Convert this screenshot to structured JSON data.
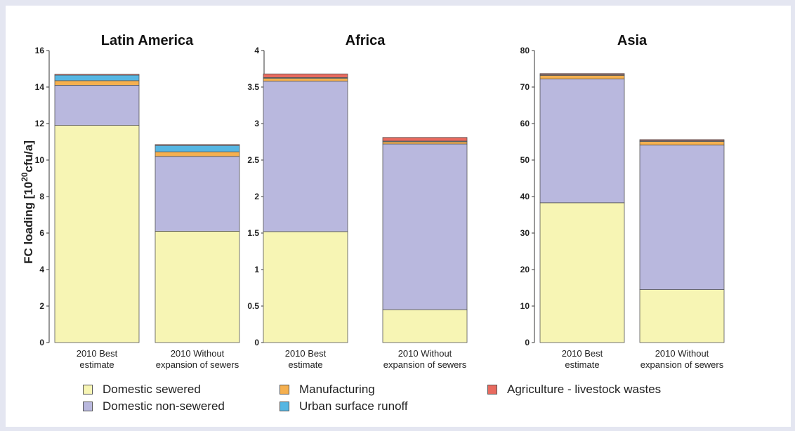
{
  "colors": {
    "domestic_sewered": "#f7f5b4",
    "domestic_non_sewered": "#b9b8de",
    "manufacturing": "#f5b04f",
    "urban_runoff": "#56b6e2",
    "agriculture": "#e96a5f"
  },
  "ylabel": "FC loading [10",
  "ylabel_sup": "20",
  "ylabel_tail": "cfu/a]",
  "legend": [
    {
      "name": "Domestic sewered",
      "color": "#f7f5b4"
    },
    {
      "name": "Domestic non-sewered",
      "color": "#b9b8de"
    },
    {
      "name": "Manufacturing",
      "color": "#f5b04f"
    },
    {
      "name": "Urban surface runoff",
      "color": "#56b6e2"
    },
    {
      "name": "Agriculture - livestock wastes",
      "color": "#e96a5f"
    }
  ],
  "chart_data": [
    {
      "type": "bar",
      "stacked": true,
      "title": "Latin America",
      "categories": [
        [
          "2010 Best",
          "estimate"
        ],
        [
          "2010 Without",
          "expansion of sewers"
        ]
      ],
      "ylim": [
        0,
        16
      ],
      "yticks": [
        0,
        2,
        4,
        6,
        8,
        10,
        12,
        14,
        16
      ],
      "series": [
        {
          "name": "Domestic sewered",
          "values": [
            11.9,
            6.1
          ]
        },
        {
          "name": "Domestic non-sewered",
          "values": [
            2.2,
            4.1
          ]
        },
        {
          "name": "Manufacturing",
          "values": [
            0.25,
            0.25
          ]
        },
        {
          "name": "Urban surface runoff",
          "values": [
            0.3,
            0.35
          ]
        },
        {
          "name": "Agriculture - livestock wastes",
          "values": [
            0.05,
            0.05
          ]
        }
      ]
    },
    {
      "type": "bar",
      "stacked": true,
      "title": "Africa",
      "categories": [
        [
          "2010 Best",
          "estimate"
        ],
        [
          "2010 Without",
          "expansion of sewers"
        ]
      ],
      "ylim": [
        0,
        4
      ],
      "yticks": [
        0,
        0.5,
        1,
        1.5,
        2,
        2.5,
        3,
        3.5,
        4
      ],
      "series": [
        {
          "name": "Domestic sewered",
          "values": [
            1.52,
            0.45
          ]
        },
        {
          "name": "Domestic non-sewered",
          "values": [
            2.06,
            2.27
          ]
        },
        {
          "name": "Manufacturing",
          "values": [
            0.04,
            0.03
          ]
        },
        {
          "name": "Urban surface runoff",
          "values": [
            0.01,
            0.01
          ]
        },
        {
          "name": "Agriculture - livestock wastes",
          "values": [
            0.05,
            0.05
          ]
        }
      ]
    },
    {
      "type": "bar",
      "stacked": true,
      "title": "Asia",
      "categories": [
        [
          "2010 Best",
          "estimate"
        ],
        [
          "2010 Without",
          "expansion of sewers"
        ]
      ],
      "ylim": [
        0,
        80
      ],
      "yticks": [
        0,
        10,
        20,
        30,
        40,
        50,
        60,
        70,
        80
      ],
      "series": [
        {
          "name": "Domestic sewered",
          "values": [
            38.3,
            14.5
          ]
        },
        {
          "name": "Domestic non-sewered",
          "values": [
            33.9,
            39.6
          ]
        },
        {
          "name": "Manufacturing",
          "values": [
            1.0,
            1.0
          ]
        },
        {
          "name": "Urban surface runoff",
          "values": [
            0.2,
            0.2
          ]
        },
        {
          "name": "Agriculture - livestock wastes",
          "values": [
            0.3,
            0.3
          ]
        }
      ]
    }
  ]
}
